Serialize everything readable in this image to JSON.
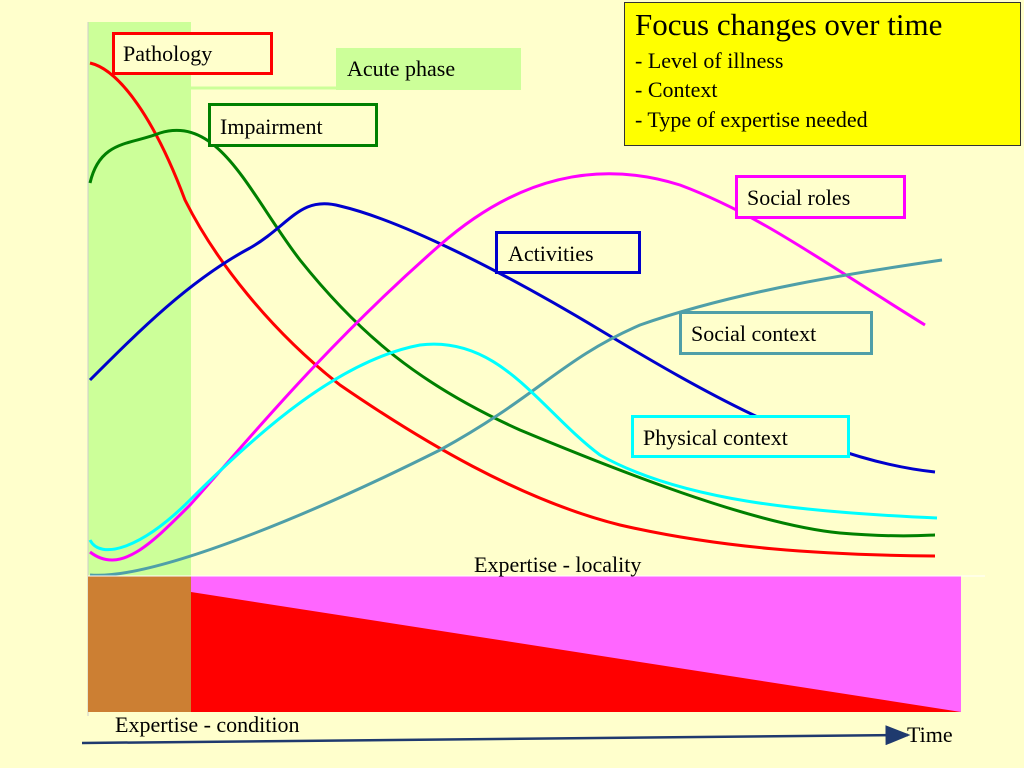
{
  "focus_box": {
    "title": "Focus changes over time",
    "items": [
      "- Level of illness",
      "- Context",
      "- Type of expertise needed"
    ]
  },
  "phase": {
    "label": "Acute phase"
  },
  "curves": [
    {
      "name": "Pathology",
      "color": "#ff0000",
      "border": "#ff0000"
    },
    {
      "name": "Impairment",
      "color": "#008000",
      "border": "#008000"
    },
    {
      "name": "Activities",
      "color": "#0000cc",
      "border": "#0000cc"
    },
    {
      "name": "Social roles",
      "color": "#ff00ff",
      "border": "#ff00ff"
    },
    {
      "name": "Social context",
      "color": "#4f9fa8",
      "border": "#4f9fa8"
    },
    {
      "name": "Physical context",
      "color": "#00ffff",
      "border": "#00ffff"
    }
  ],
  "expertise": {
    "locality": "Expertise - locality",
    "condition": "Expertise - condition",
    "locality_color": "#ff66ff",
    "condition_color": "#ff0000",
    "overlap_color": "#cc7f33"
  },
  "axis": {
    "time_label": "Time",
    "arrow_color": "#1f3a6e"
  },
  "colors": {
    "background": "#ffffcc",
    "acute_phase": "#ccff99",
    "focus_box": "#ffff00"
  }
}
